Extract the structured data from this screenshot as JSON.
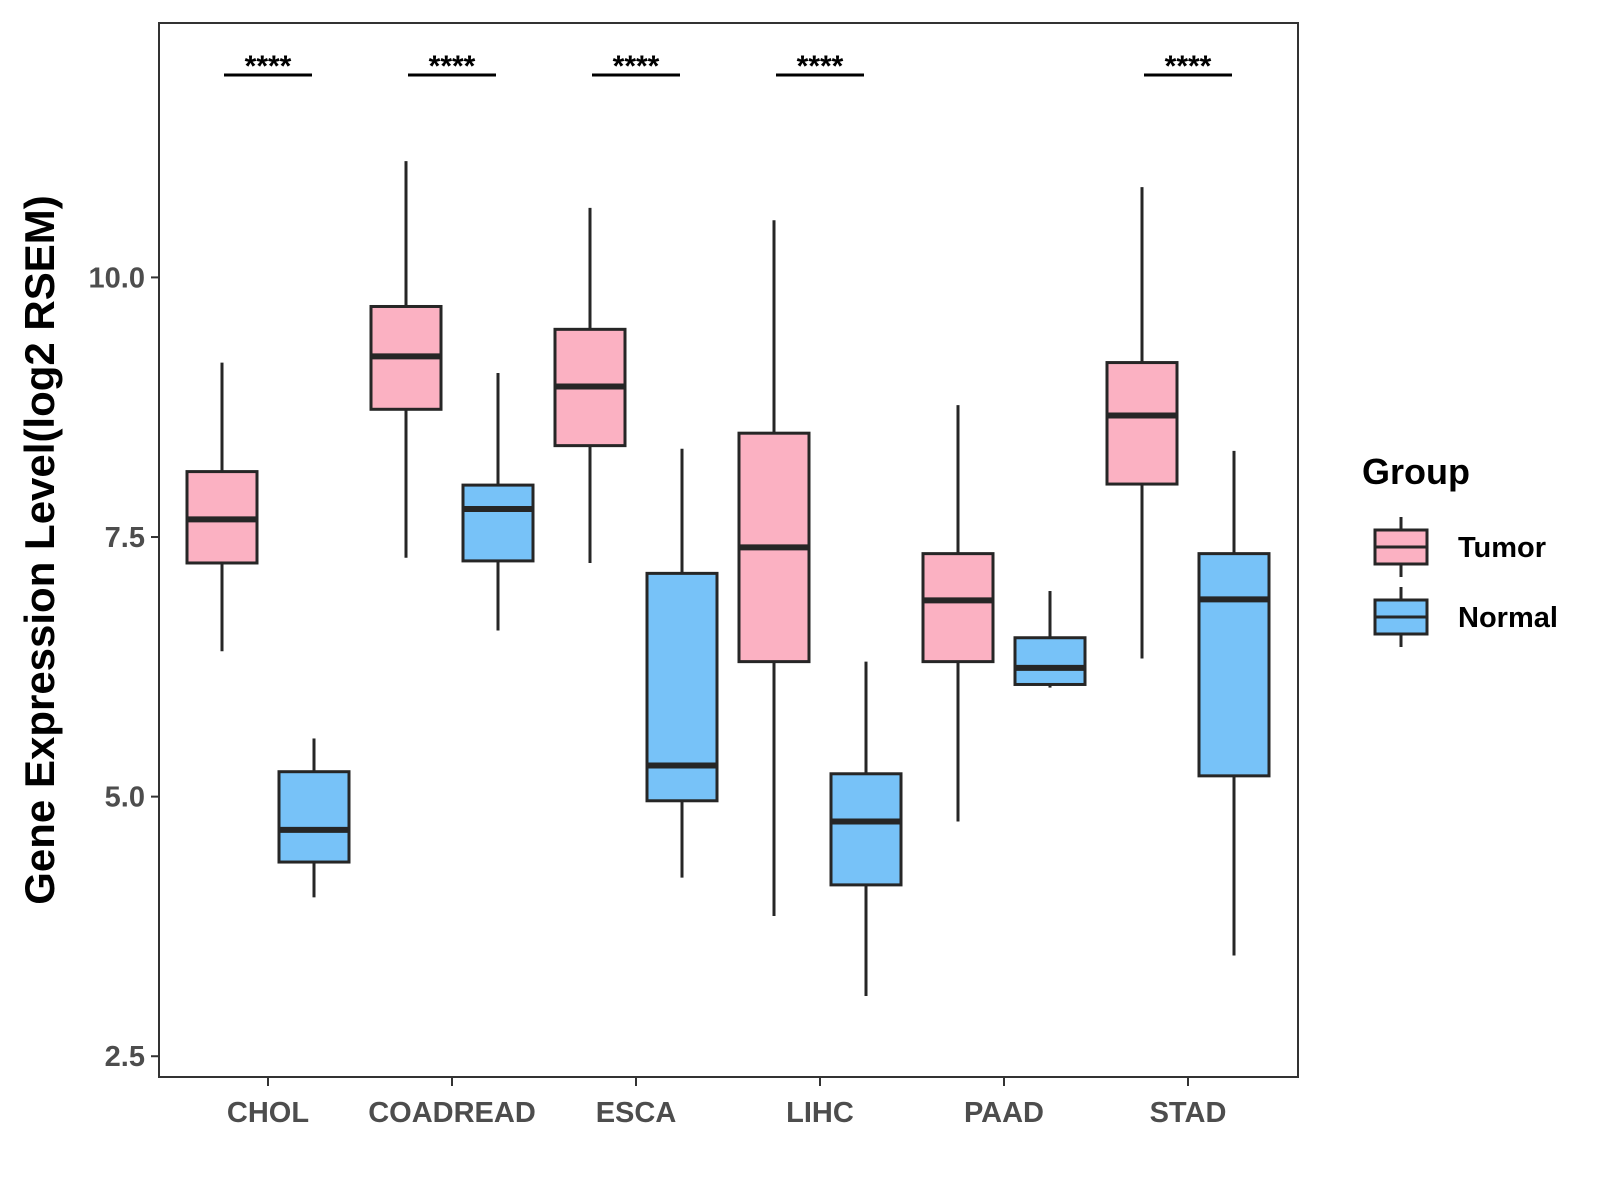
{
  "chart_data": {
    "type": "box",
    "title": "",
    "xlabel": "",
    "ylabel": "Gene Expression Level(log2 RSEM)",
    "ylim": [
      2.3,
      12.45
    ],
    "yticks": [
      2.5,
      5.0,
      7.5,
      10.0
    ],
    "ytick_labels": [
      "2.5",
      "5.0",
      "7.5",
      "10.0"
    ],
    "categories": [
      "CHOL",
      "COADREAD",
      "ESCA",
      "LIHC",
      "PAAD",
      "STAD"
    ],
    "legend": {
      "title": "Group",
      "position": "right",
      "entries": [
        {
          "name": "Tumor",
          "color": "#fbb1c2"
        },
        {
          "name": "Normal",
          "color": "#77c2f8"
        }
      ]
    },
    "series": [
      {
        "name": "Tumor",
        "color": "#fbb1c2",
        "boxes": [
          {
            "min": 6.4,
            "q1": 7.25,
            "median": 7.67,
            "q3": 8.13,
            "max": 9.18
          },
          {
            "min": 7.3,
            "q1": 8.73,
            "median": 9.24,
            "q3": 9.72,
            "max": 11.12
          },
          {
            "min": 7.25,
            "q1": 8.38,
            "median": 8.95,
            "q3": 9.5,
            "max": 10.67
          },
          {
            "min": 3.85,
            "q1": 6.3,
            "median": 7.4,
            "q3": 8.5,
            "max": 10.55
          },
          {
            "min": 4.76,
            "q1": 6.3,
            "median": 6.89,
            "q3": 7.34,
            "max": 8.77
          },
          {
            "min": 6.33,
            "q1": 8.01,
            "median": 8.67,
            "q3": 9.18,
            "max": 10.87
          }
        ]
      },
      {
        "name": "Normal",
        "color": "#77c2f8",
        "boxes": [
          {
            "min": 4.03,
            "q1": 4.37,
            "median": 4.68,
            "q3": 5.24,
            "max": 5.56
          },
          {
            "min": 6.6,
            "q1": 7.27,
            "median": 7.77,
            "q3": 8.0,
            "max": 9.08
          },
          {
            "min": 4.22,
            "q1": 4.96,
            "median": 5.3,
            "q3": 7.15,
            "max": 8.35
          },
          {
            "min": 3.08,
            "q1": 4.15,
            "median": 4.76,
            "q3": 5.22,
            "max": 6.3
          },
          {
            "min": 6.05,
            "q1": 6.08,
            "median": 6.24,
            "q3": 6.53,
            "max": 6.98
          },
          {
            "min": 3.47,
            "q1": 5.2,
            "median": 6.9,
            "q3": 7.34,
            "max": 8.33
          }
        ]
      }
    ],
    "annotations": [
      {
        "category": "CHOL",
        "text": "****"
      },
      {
        "category": "COADREAD",
        "text": "****"
      },
      {
        "category": "ESCA",
        "text": "****"
      },
      {
        "category": "LIHC",
        "text": "****"
      },
      {
        "category": "STAD",
        "text": "****"
      }
    ]
  }
}
